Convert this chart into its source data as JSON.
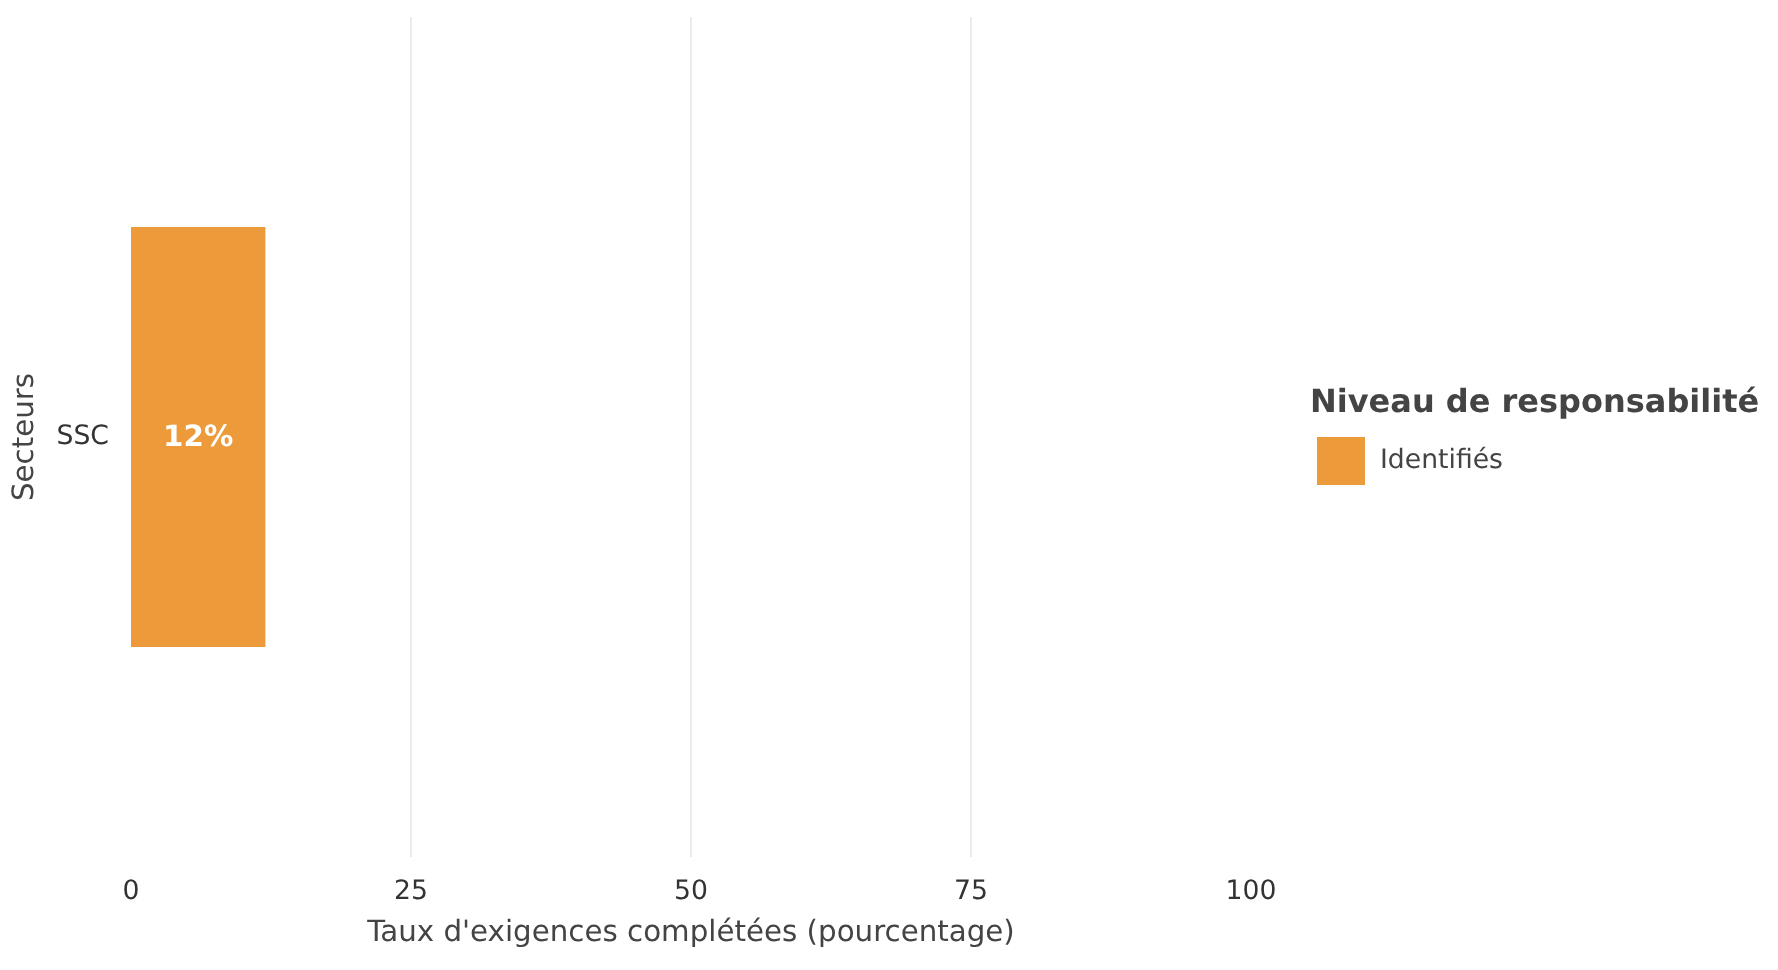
{
  "chart_data": {
    "type": "bar",
    "orientation": "horizontal",
    "categories": [
      "SSC"
    ],
    "series": [
      {
        "name": "Identifiés",
        "color": "#ec9a3a",
        "values": [
          12
        ]
      }
    ],
    "value_labels": [
      "12%"
    ],
    "xlabel": "Taux d'exigences complétées (pourcentage)",
    "ylabel": "Secteurs",
    "legend_title": "Niveau de responsabilité",
    "xlim": [
      0,
      100
    ],
    "xticks": [
      0,
      25,
      50,
      75,
      100
    ],
    "grid": "x",
    "legend": "right"
  }
}
